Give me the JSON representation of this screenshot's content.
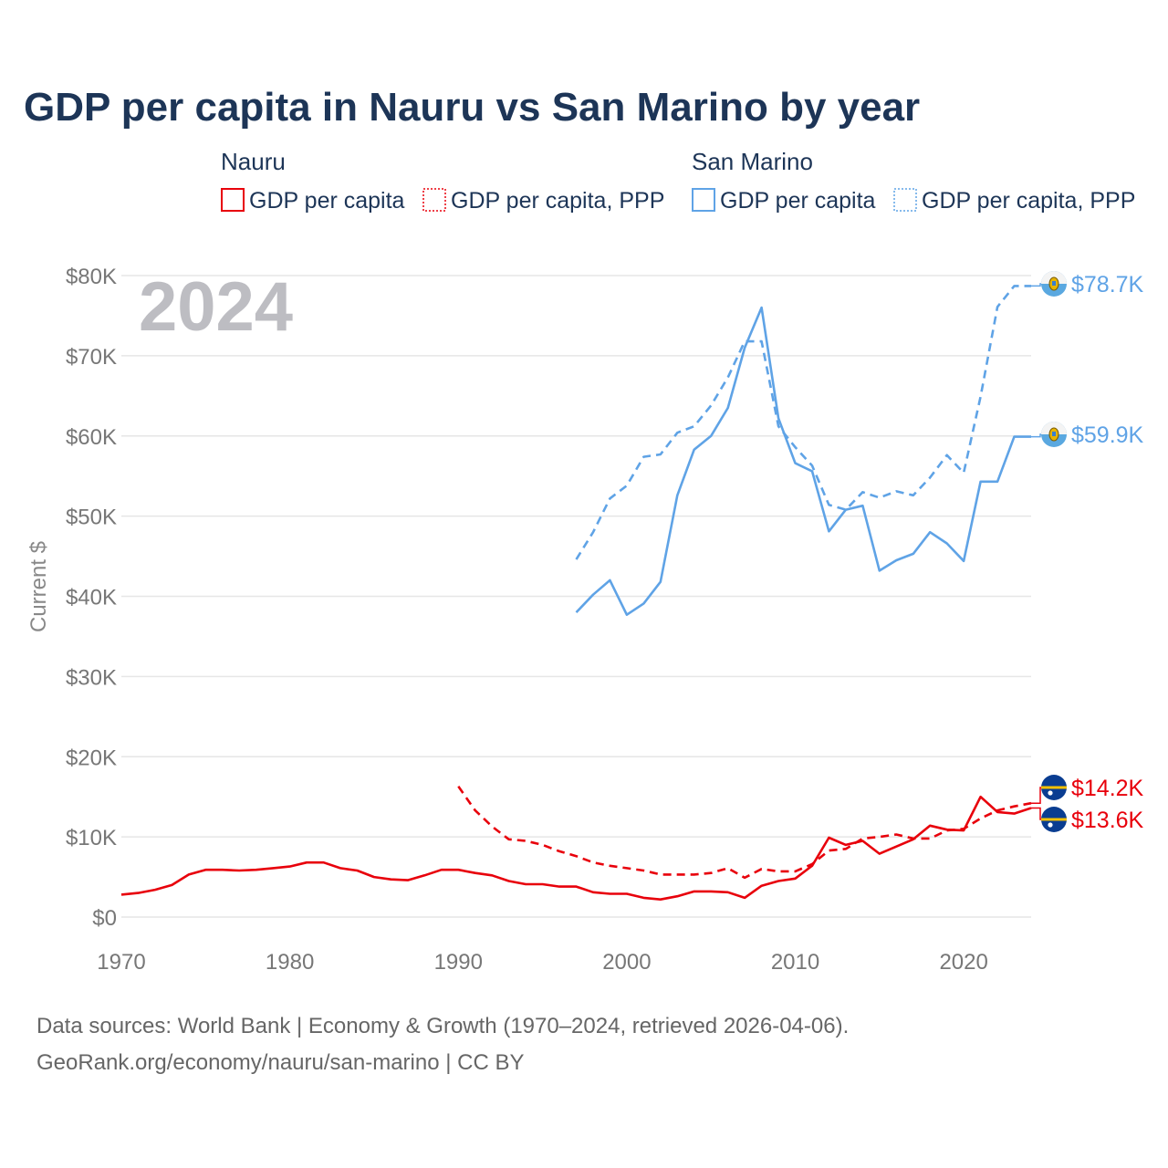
{
  "chart_data": {
    "type": "line",
    "title": "GDP per capita in Nauru vs San Marino by year",
    "year_label": "2024",
    "ylabel": "Current $",
    "xlabel": "",
    "xlim": [
      1970,
      2024
    ],
    "ylim": [
      0,
      80000
    ],
    "x_ticks": [
      1970,
      1980,
      1990,
      2000,
      2010,
      2020
    ],
    "y_ticks": [
      0,
      10000,
      20000,
      30000,
      40000,
      50000,
      60000,
      70000,
      80000
    ],
    "y_tick_labels": [
      "$0",
      "$10K",
      "$20K",
      "$30K",
      "$40K",
      "$50K",
      "$60K",
      "$70K",
      "$80K"
    ],
    "grid": true,
    "legend_groups": [
      {
        "name": "Nauru",
        "items": [
          "GDP per capita",
          "GDP per capita, PPP"
        ]
      },
      {
        "name": "San Marino",
        "items": [
          "GDP per capita",
          "GDP per capita, PPP"
        ]
      }
    ],
    "series": [
      {
        "name": "Nauru GDP per capita",
        "country": "Nauru",
        "indicator": "GDP per capita",
        "color": "#e8000b",
        "style": "solid",
        "end_label": "$13.6K",
        "flag": "nauru-flag-icon",
        "x": [
          1970,
          1971,
          1972,
          1973,
          1974,
          1975,
          1976,
          1977,
          1978,
          1979,
          1980,
          1981,
          1982,
          1983,
          1984,
          1985,
          1986,
          1987,
          1988,
          1989,
          1990,
          1991,
          1992,
          1993,
          1994,
          1995,
          1996,
          1997,
          1998,
          1999,
          2000,
          2001,
          2002,
          2003,
          2004,
          2005,
          2006,
          2007,
          2008,
          2009,
          2010,
          2011,
          2012,
          2013,
          2014,
          2015,
          2016,
          2017,
          2018,
          2019,
          2020,
          2021,
          2022,
          2023,
          2024
        ],
        "values": [
          2800,
          3000,
          3400,
          4000,
          5300,
          5900,
          5900,
          5800,
          5900,
          6100,
          6300,
          6800,
          6800,
          6100,
          5800,
          5000,
          4700,
          4600,
          5200,
          5900,
          5900,
          5500,
          5200,
          4500,
          4100,
          4100,
          3800,
          3800,
          3100,
          2900,
          2900,
          2400,
          2200,
          2600,
          3200,
          3200,
          3100,
          2400,
          3900,
          4500,
          4800,
          6400,
          9900,
          9000,
          9500,
          7900,
          8800,
          9700,
          11400,
          10900,
          10800,
          15000,
          13100,
          12900,
          13600
        ]
      },
      {
        "name": "Nauru GDP per capita, PPP",
        "country": "Nauru",
        "indicator": "GDP per capita, PPP",
        "color": "#e8000b",
        "style": "dashed",
        "end_label": "$14.2K",
        "flag": "nauru-flag-icon",
        "x": [
          1990,
          1991,
          1992,
          1993,
          1994,
          1995,
          1996,
          1997,
          1998,
          1999,
          2000,
          2001,
          2002,
          2003,
          2004,
          2005,
          2006,
          2007,
          2008,
          2009,
          2010,
          2011,
          2012,
          2013,
          2014,
          2015,
          2016,
          2017,
          2018,
          2019,
          2020,
          2021,
          2022,
          2023,
          2024
        ],
        "values": [
          16300,
          13300,
          11300,
          9700,
          9500,
          9000,
          8200,
          7600,
          6800,
          6400,
          6100,
          5800,
          5300,
          5300,
          5300,
          5500,
          6100,
          4900,
          6000,
          5700,
          5700,
          6600,
          8300,
          8500,
          9800,
          10000,
          10300,
          9800,
          9800,
          10800,
          11000,
          12300,
          13300,
          13800,
          14200
        ]
      },
      {
        "name": "San Marino GDP per capita",
        "country": "San Marino",
        "indicator": "GDP per capita",
        "color": "#5fa3e6",
        "style": "solid",
        "end_label": "$59.9K",
        "flag": "san-marino-flag-icon",
        "x": [
          1997,
          1998,
          1999,
          2000,
          2001,
          2002,
          2003,
          2004,
          2005,
          2006,
          2007,
          2008,
          2009,
          2010,
          2011,
          2012,
          2013,
          2014,
          2015,
          2016,
          2017,
          2018,
          2019,
          2020,
          2021,
          2022,
          2023,
          2024
        ],
        "values": [
          38000,
          40200,
          42000,
          37700,
          39100,
          41800,
          52600,
          58300,
          60000,
          63500,
          71000,
          76000,
          62200,
          56600,
          55600,
          48100,
          50800,
          51300,
          43200,
          44500,
          45300,
          48000,
          46600,
          44400,
          54300,
          54300,
          59900,
          59900
        ]
      },
      {
        "name": "San Marino GDP per capita, PPP",
        "country": "San Marino",
        "indicator": "GDP per capita, PPP",
        "color": "#5fa3e6",
        "style": "dashed",
        "end_label": "$78.7K",
        "flag": "san-marino-flag-icon",
        "x": [
          1997,
          1998,
          1999,
          2000,
          2001,
          2002,
          2003,
          2004,
          2005,
          2006,
          2007,
          2008,
          2009,
          2010,
          2011,
          2012,
          2013,
          2014,
          2015,
          2016,
          2017,
          2018,
          2019,
          2020,
          2021,
          2022,
          2023,
          2024
        ],
        "values": [
          44600,
          48000,
          52200,
          53800,
          57400,
          57700,
          60400,
          61200,
          63800,
          67300,
          71800,
          71800,
          61200,
          58600,
          56300,
          51400,
          50800,
          53000,
          52300,
          53100,
          52600,
          54800,
          57600,
          55400,
          64900,
          76100,
          78700,
          78700
        ]
      }
    ],
    "source_line1": "Data sources: World Bank | Economy & Growth (1970–2024, retrieved 2026-04-06).",
    "source_line2": "GeoRank.org/economy/nauru/san-marino | CC BY"
  }
}
